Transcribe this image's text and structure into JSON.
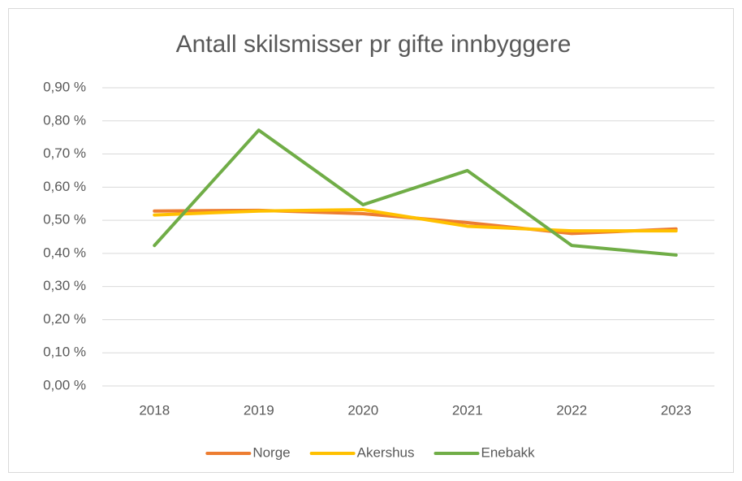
{
  "chart_data": {
    "type": "line",
    "title": "Antall skilsmisser pr gifte innbyggere",
    "categories": [
      "2018",
      "2019",
      "2020",
      "2021",
      "2022",
      "2023"
    ],
    "series": [
      {
        "name": "Norge",
        "color": "#ed7d31",
        "values": [
          0.528,
          0.53,
          0.52,
          0.493,
          0.46,
          0.474
        ]
      },
      {
        "name": "Akershus",
        "color": "#ffc000",
        "values": [
          0.516,
          0.528,
          0.532,
          0.482,
          0.468,
          0.468
        ]
      },
      {
        "name": "Enebakk",
        "color": "#70ad47",
        "values": [
          0.424,
          0.772,
          0.547,
          0.65,
          0.424,
          0.395
        ]
      }
    ],
    "ylim": [
      0,
      0.9
    ],
    "yticks": [
      {
        "value": 0,
        "label": "0,00 %"
      },
      {
        "value": 0.1,
        "label": "0,10 %"
      },
      {
        "value": 0.2,
        "label": "0,20 %"
      },
      {
        "value": 0.3,
        "label": "0,30 %"
      },
      {
        "value": 0.4,
        "label": "0,40 %"
      },
      {
        "value": 0.5,
        "label": "0,50 %"
      },
      {
        "value": 0.6,
        "label": "0,60 %"
      },
      {
        "value": 0.7,
        "label": "0,70 %"
      },
      {
        "value": 0.8,
        "label": "0,80 %"
      },
      {
        "value": 0.9,
        "label": "0,90 %"
      }
    ],
    "grid": true,
    "legend": "bottom"
  }
}
